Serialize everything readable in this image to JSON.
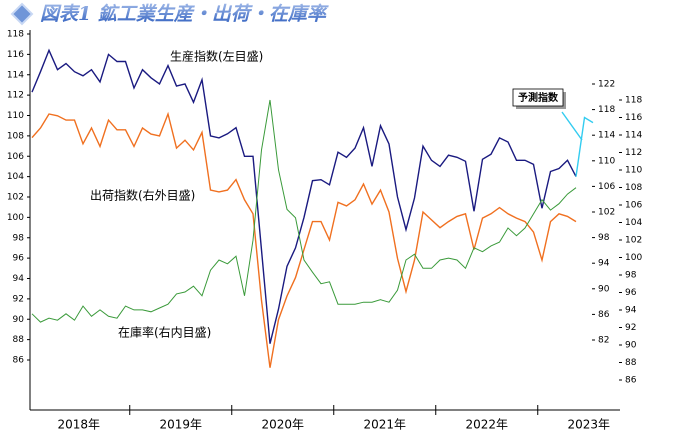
{
  "chart_data": {
    "type": "line",
    "title": "図表1 鉱工業生産・出荷・在庫率",
    "annotation": "予測指数",
    "xticks": [
      {
        "value": 5.5,
        "label": "2018年"
      },
      {
        "value": 17.5,
        "label": "2019年"
      },
      {
        "value": 29.5,
        "label": "2020年"
      },
      {
        "value": 41.5,
        "label": "2021年"
      },
      {
        "value": 53.5,
        "label": "2022年"
      },
      {
        "value": 65.5,
        "label": "2023年"
      }
    ],
    "ylim": [
      86,
      118
    ],
    "yticks": [
      86,
      88,
      90,
      92,
      94,
      96,
      98,
      100,
      102,
      104,
      106,
      108,
      110,
      112,
      114,
      116,
      118
    ],
    "y2lim": [
      82,
      122
    ],
    "y2ticks": [
      82,
      86,
      90,
      94,
      98,
      102,
      106,
      110,
      114,
      118,
      122
    ],
    "y3lim": [
      86,
      118
    ],
    "y3ticks": [
      86,
      88,
      90,
      92,
      94,
      96,
      98,
      100,
      102,
      104,
      106,
      108,
      110,
      112,
      114,
      116,
      118
    ],
    "series": [
      {
        "name": "生産指数(左目盛)",
        "color": "#1a1a80",
        "axis": "y",
        "values": [
          112.3,
          114.3,
          116.4,
          114.5,
          115.1,
          114.3,
          113.9,
          114.5,
          113.3,
          116.0,
          115.3,
          115.3,
          112.7,
          114.5,
          113.7,
          113.1,
          114.9,
          112.9,
          113.1,
          111.3,
          113.5,
          108.0,
          107.8,
          108.2,
          108.8,
          106.0,
          106.0,
          96.8,
          87.6,
          91.0,
          95.2,
          97.0,
          100.0,
          103.6,
          103.7,
          103.2,
          106.4,
          105.9,
          106.8,
          108.8,
          105.0,
          109.0,
          107.2,
          102.0,
          98.8,
          101.9,
          107.0,
          105.6,
          105.0,
          106.1,
          105.9,
          105.5,
          100.6,
          105.7,
          106.2,
          107.8,
          107.4,
          105.6,
          105.6,
          105.2,
          100.9,
          104.5,
          104.8,
          105.6,
          104.0,
          null,
          null
        ]
      },
      {
        "name": "出荷指数(右外目盛)",
        "color": "#f07020",
        "axis": "y3",
        "values": [
          113.7,
          114.8,
          116.4,
          116.2,
          115.7,
          115.7,
          113.0,
          114.8,
          112.7,
          115.7,
          114.6,
          114.6,
          112.7,
          114.8,
          114.1,
          113.9,
          116.4,
          112.5,
          113.4,
          112.3,
          114.3,
          107.7,
          107.5,
          107.7,
          108.9,
          106.6,
          105.0,
          95.1,
          87.4,
          92.9,
          95.6,
          97.7,
          100.9,
          104.1,
          104.1,
          102.0,
          106.3,
          105.9,
          106.6,
          108.4,
          106.1,
          107.7,
          105.2,
          99.9,
          96.1,
          99.7,
          105.2,
          104.3,
          103.4,
          104.1,
          104.7,
          105.0,
          100.9,
          104.5,
          105.0,
          105.7,
          105.0,
          104.5,
          104.1,
          102.9,
          99.7,
          104.1,
          105.0,
          104.7,
          104.1,
          null,
          null
        ]
      },
      {
        "name": "在庫率(右内目盛)",
        "color": "#3a9a3a",
        "axis": "y2",
        "values": [
          86.1,
          84.8,
          85.4,
          85.1,
          86.1,
          85.1,
          87.3,
          85.7,
          86.7,
          85.7,
          85.4,
          87.3,
          86.7,
          86.7,
          86.4,
          87.0,
          87.6,
          89.2,
          89.5,
          90.4,
          88.9,
          92.9,
          94.5,
          93.9,
          95.1,
          88.9,
          97.6,
          111.7,
          119.5,
          108.6,
          102.4,
          101.1,
          94.5,
          92.6,
          90.8,
          91.1,
          87.6,
          87.6,
          87.6,
          87.9,
          87.9,
          88.3,
          87.9,
          89.8,
          94.5,
          95.4,
          93.2,
          93.2,
          94.5,
          94.8,
          94.5,
          93.2,
          96.4,
          95.8,
          96.7,
          97.3,
          99.5,
          98.3,
          99.5,
          101.7,
          103.9,
          102.3,
          103.3,
          104.8,
          105.8,
          null,
          null
        ]
      },
      {
        "name": "予測指数",
        "color": "#33ccf0",
        "axis": "y",
        "values": [
          null,
          null,
          null,
          null,
          null,
          null,
          null,
          null,
          null,
          null,
          null,
          null,
          null,
          null,
          null,
          null,
          null,
          null,
          null,
          null,
          null,
          null,
          null,
          null,
          null,
          null,
          null,
          null,
          null,
          null,
          null,
          null,
          null,
          null,
          null,
          null,
          null,
          null,
          null,
          null,
          null,
          null,
          null,
          null,
          null,
          null,
          null,
          null,
          null,
          null,
          null,
          null,
          null,
          null,
          null,
          null,
          null,
          null,
          null,
          null,
          null,
          null,
          null,
          null,
          104.0,
          109.8,
          109.3
        ]
      }
    ]
  }
}
